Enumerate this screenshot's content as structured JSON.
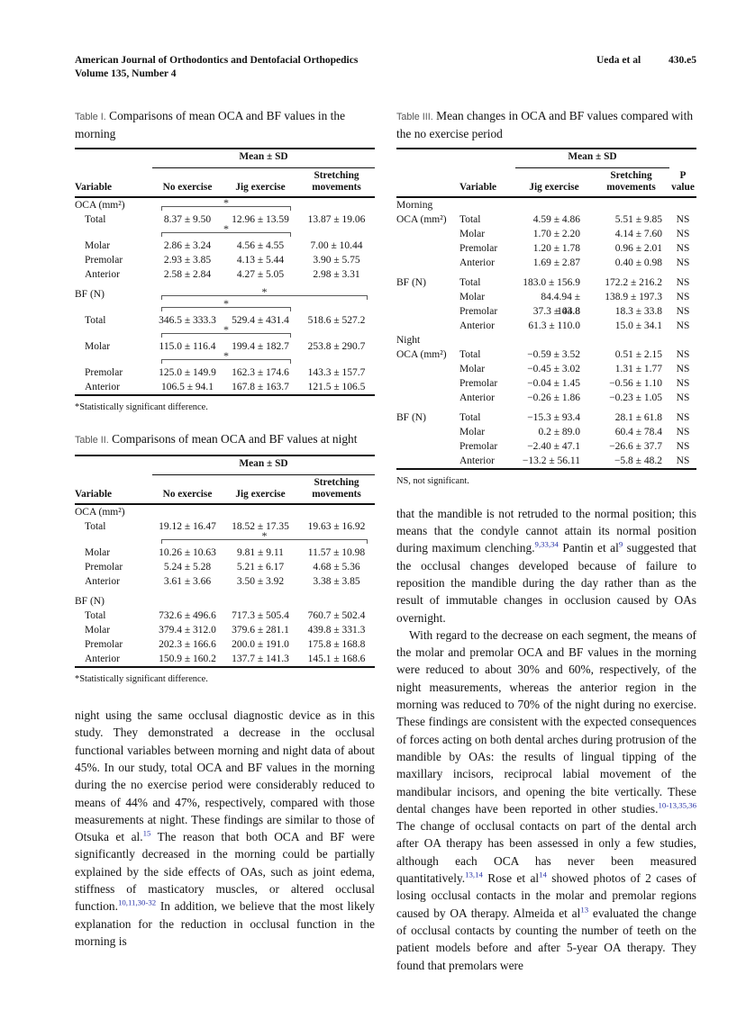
{
  "header": {
    "journal_line1": "American Journal of Orthodontics and Dentofacial Orthopedics",
    "journal_line2": "Volume 135, Number 4",
    "authors": "Ueda et al",
    "page_number": "430.e5"
  },
  "colors": {
    "citation": "#2a35a8",
    "rule": "#111111"
  },
  "table1": {
    "label": "Table I.",
    "title": "Comparisons of mean OCA and BF values in the morning",
    "spanner": "Mean ± SD",
    "columns": [
      "Variable",
      "No exercise",
      "Jig exercise",
      "Stretching movements"
    ],
    "rows": [
      {
        "type": "section",
        "label": "OCA (mm²)",
        "bracket": {
          "from": 1,
          "to": 2
        }
      },
      {
        "type": "row",
        "label": "Total",
        "values": [
          "8.37 ± 9.50",
          "12.96 ± 13.59",
          "13.87 ± 19.06"
        ]
      },
      {
        "type": "bracket",
        "from": 1,
        "to": 2
      },
      {
        "type": "row",
        "label": "Molar",
        "values": [
          "2.86 ± 3.24",
          "4.56 ± 4.55",
          "7.00 ± 10.44"
        ]
      },
      {
        "type": "row",
        "label": "Premolar",
        "values": [
          "2.93 ± 3.85",
          "4.13 ± 5.44",
          "3.90 ± 5.75"
        ]
      },
      {
        "type": "row",
        "label": "Anterior",
        "values": [
          "2.58 ± 2.84",
          "4.27 ± 5.05",
          "2.98 ± 3.31"
        ]
      },
      {
        "type": "gap"
      },
      {
        "type": "section",
        "label": "BF (N)",
        "bracket": {
          "from": 1,
          "to": 3
        }
      },
      {
        "type": "bracket",
        "from": 1,
        "to": 2
      },
      {
        "type": "row",
        "label": "Total",
        "values": [
          "346.5 ± 333.3",
          "529.4 ± 431.4",
          "518.6 ± 527.2"
        ]
      },
      {
        "type": "bracket",
        "from": 1,
        "to": 2
      },
      {
        "type": "row",
        "label": "Molar",
        "values": [
          "115.0 ± 116.4",
          "199.4 ± 182.7",
          "253.8 ± 290.7"
        ]
      },
      {
        "type": "bracket",
        "from": 1,
        "to": 2
      },
      {
        "type": "row",
        "label": "Premolar",
        "values": [
          "125.0 ± 149.9",
          "162.3 ± 174.6",
          "143.3 ± 157.7"
        ]
      },
      {
        "type": "row",
        "label": "Anterior",
        "values": [
          "106.5 ± 94.1",
          "167.8 ± 163.7",
          "121.5 ± 106.5"
        ]
      }
    ],
    "footnote": "*Statistically significant difference."
  },
  "table2": {
    "label": "Table II.",
    "title": "Comparisons of mean OCA and BF values at night",
    "spanner": "Mean ± SD",
    "columns": [
      "Variable",
      "No exercise",
      "Jig exercise",
      "Stretching movements"
    ],
    "rows": [
      {
        "type": "section",
        "label": "OCA (mm²)"
      },
      {
        "type": "row",
        "label": "Total",
        "values": [
          "19.12 ± 16.47",
          "18.52 ± 17.35",
          "19.63 ± 16.92"
        ]
      },
      {
        "type": "bracket",
        "from": 1,
        "to": 3
      },
      {
        "type": "row",
        "label": "Molar",
        "values": [
          "10.26 ± 10.63",
          "9.81 ± 9.11",
          "11.57 ± 10.98"
        ]
      },
      {
        "type": "row",
        "label": "Premolar",
        "values": [
          "5.24 ± 5.28",
          "5.21 ± 6.17",
          "4.68 ± 5.36"
        ]
      },
      {
        "type": "row",
        "label": "Anterior",
        "values": [
          "3.61 ± 3.66",
          "3.50 ± 3.92",
          "3.38 ± 3.85"
        ]
      },
      {
        "type": "gap"
      },
      {
        "type": "section",
        "label": "BF (N)"
      },
      {
        "type": "row",
        "label": "Total",
        "values": [
          "732.6 ± 496.6",
          "717.3 ± 505.4",
          "760.7 ± 502.4"
        ]
      },
      {
        "type": "row",
        "label": "Molar",
        "values": [
          "379.4 ± 312.0",
          "379.6 ± 281.1",
          "439.8 ± 331.3"
        ]
      },
      {
        "type": "row",
        "label": "Premolar",
        "values": [
          "202.3 ± 166.6",
          "200.0 ± 191.0",
          "175.8 ± 168.8"
        ]
      },
      {
        "type": "row",
        "label": "Anterior",
        "values": [
          "150.9 ± 160.2",
          "137.7 ± 141.3",
          "145.1 ± 168.6"
        ]
      }
    ],
    "footnote": "*Statistically significant difference."
  },
  "table3": {
    "label": "Table III.",
    "title": "Mean changes in OCA and BF values compared with the no exercise period",
    "spanner": "Mean ± SD",
    "columns": [
      "",
      "Variable",
      "Jig exercise",
      "Sretching movements",
      "P value"
    ],
    "rows": [
      {
        "cells": [
          "Morning",
          "",
          "",
          "",
          ""
        ]
      },
      {
        "cells": [
          "OCA (mm²)",
          "Total",
          "4.59 ± 4.86",
          "5.51 ± 9.85",
          "NS"
        ]
      },
      {
        "cells": [
          "",
          "Molar",
          "1.70 ± 2.20",
          "4.14 ± 7.60",
          "NS"
        ]
      },
      {
        "cells": [
          "",
          "Premolar",
          "1.20 ± 1.78",
          "0.96 ± 2.01",
          "NS"
        ]
      },
      {
        "cells": [
          "",
          "Anterior",
          "1.69 ± 2.87",
          "0.40 ± 0.98",
          "NS"
        ]
      },
      {
        "gap": true
      },
      {
        "cells": [
          "BF (N)",
          "Total",
          "183.0 ± 156.9",
          "172.2 ± 216.2",
          "NS"
        ]
      },
      {
        "cells": [
          "",
          "Molar",
          "84.4.94 ± 103.8",
          "138.9 ± 197.3",
          "NS"
        ]
      },
      {
        "cells": [
          "",
          "Premolar",
          "37.3 ± 44.8",
          "18.3 ± 33.8",
          "NS"
        ]
      },
      {
        "cells": [
          "",
          "Anterior",
          "61.3 ± 110.0",
          "15.0 ± 34.1",
          "NS"
        ]
      },
      {
        "cells": [
          "Night",
          "",
          "",
          "",
          ""
        ]
      },
      {
        "cells": [
          "OCA (mm²)",
          "Total",
          "−0.59 ± 3.52",
          "0.51 ± 2.15",
          "NS"
        ]
      },
      {
        "cells": [
          "",
          "Molar",
          "−0.45 ± 3.02",
          "1.31 ± 1.77",
          "NS"
        ]
      },
      {
        "cells": [
          "",
          "Premolar",
          "−0.04 ± 1.45",
          "−0.56 ± 1.10",
          "NS"
        ]
      },
      {
        "cells": [
          "",
          "Anterior",
          "−0.26 ± 1.86",
          "−0.23 ± 1.05",
          "NS"
        ]
      },
      {
        "gap": true
      },
      {
        "cells": [
          "BF (N)",
          "Total",
          "−15.3 ± 93.4",
          "28.1 ± 61.8",
          "NS"
        ]
      },
      {
        "cells": [
          "",
          "Molar",
          "0.2 ± 89.0",
          "60.4 ± 78.4",
          "NS"
        ]
      },
      {
        "cells": [
          "",
          "Premolar",
          "−2.40 ± 47.1",
          "−26.6 ± 37.7",
          "NS"
        ]
      },
      {
        "cells": [
          "",
          "Anterior",
          "−13.2 ± 56.11",
          "−5.8 ± 48.2",
          "NS"
        ]
      }
    ],
    "footnote": "NS, not significant."
  },
  "body": {
    "left_paragraphs": [
      {
        "indent": false,
        "segments": [
          {
            "t": "night using the same occlusal diagnostic device as in this study. They demonstrated a decrease in the occlusal functional variables between morning and night data of about 45%. In our study, total OCA and BF values in the morning during the no exercise period were considerably reduced to means of 44% and 47%, respectively, compared with those measurements at night. These findings are similar to those of Otsuka et al."
          },
          {
            "sup": "15"
          },
          {
            "t": " The reason that both OCA and BF were significantly decreased in the morning could be partially explained by the side effects of OAs, such as joint edema, stiffness of masticatory muscles, or altered occlusal function."
          },
          {
            "sup": "10,11,30-32"
          },
          {
            "t": " In addition, we believe that the most likely explanation for the reduction in occlusal function in the morning is"
          }
        ]
      }
    ],
    "right_paragraphs": [
      {
        "indent": false,
        "segments": [
          {
            "t": "that the mandible is not retruded to the normal position; this means that the condyle cannot attain its normal position during maximum clenching."
          },
          {
            "sup": "9,33,34"
          },
          {
            "t": " Pantin et al"
          },
          {
            "sup": "9"
          },
          {
            "t": " suggested that the occlusal changes developed because of failure to reposition the mandible during the day rather than as the result of immutable changes in occlusion caused by OAs overnight."
          }
        ]
      },
      {
        "indent": true,
        "segments": [
          {
            "t": "With regard to the decrease on each segment, the means of the molar and premolar OCA and BF values in the morning were reduced to about 30% and 60%, respectively, of the night measurements, whereas the anterior region in the morning was reduced to 70% of the night during no exercise. These findings are consistent with the expected consequences of forces acting on both dental arches during protrusion of the mandible by OAs: the results of lingual tipping of the maxillary incisors, reciprocal labial movement of the mandibular incisors, and opening the bite vertically. These dental changes have been reported in other studies."
          },
          {
            "sup": "10-13,35,36"
          },
          {
            "t": " The change of occlusal contacts on part of the dental arch after OA therapy has been assessed in only a few studies, although each OCA has never been measured quantitatively."
          },
          {
            "sup": "13,14"
          },
          {
            "t": " Rose et al"
          },
          {
            "sup": "14"
          },
          {
            "t": " showed photos of 2 cases of losing occlusal contacts in the molar and premolar regions caused by OA therapy. Almeida et al"
          },
          {
            "sup": "13"
          },
          {
            "t": " evaluated the change of occlusal contacts by counting the number of teeth on the patient models before and after 5-year OA therapy. They found that premolars were"
          }
        ]
      }
    ]
  }
}
